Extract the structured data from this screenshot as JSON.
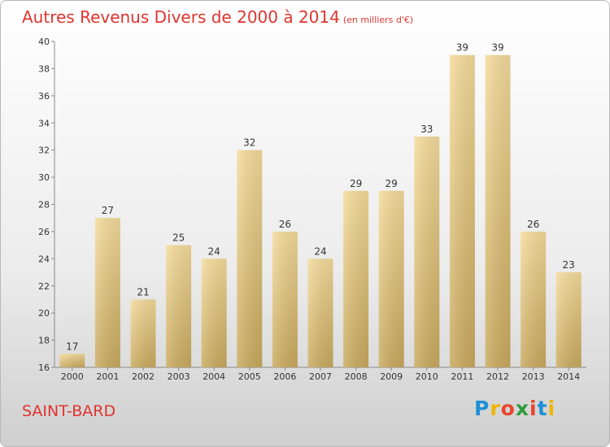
{
  "title": "Autres Revenus Divers de 2000 à 2014",
  "subtitle": "(en milliers d'€)",
  "place": "SAINT-BARD",
  "logo": {
    "letters": [
      "P",
      "r",
      "o",
      "x",
      "i",
      "t",
      "i"
    ],
    "colors": [
      "#1d8fd6",
      "#f0b400",
      "#e8452c",
      "#2f9b3a",
      "#e8452c",
      "#1d8fd6",
      "#f0b400"
    ]
  },
  "chart_data": {
    "type": "bar",
    "title": "Autres Revenus Divers de 2000 à 2014",
    "subtitle": "(en milliers d'€)",
    "xlabel": "",
    "ylabel": "",
    "categories": [
      "2000",
      "2001",
      "2002",
      "2003",
      "2004",
      "2005",
      "2006",
      "2007",
      "2008",
      "2009",
      "2010",
      "2011",
      "2012",
      "2013",
      "2014"
    ],
    "values": [
      17,
      27,
      21,
      25,
      24,
      32,
      26,
      24,
      29,
      29,
      33,
      39,
      39,
      26,
      23
    ],
    "ylim": [
      16,
      40
    ],
    "yticks": [
      16,
      18,
      20,
      22,
      24,
      26,
      28,
      30,
      32,
      34,
      36,
      38,
      40
    ],
    "grid": false,
    "bar_color": "#e6c77f"
  }
}
